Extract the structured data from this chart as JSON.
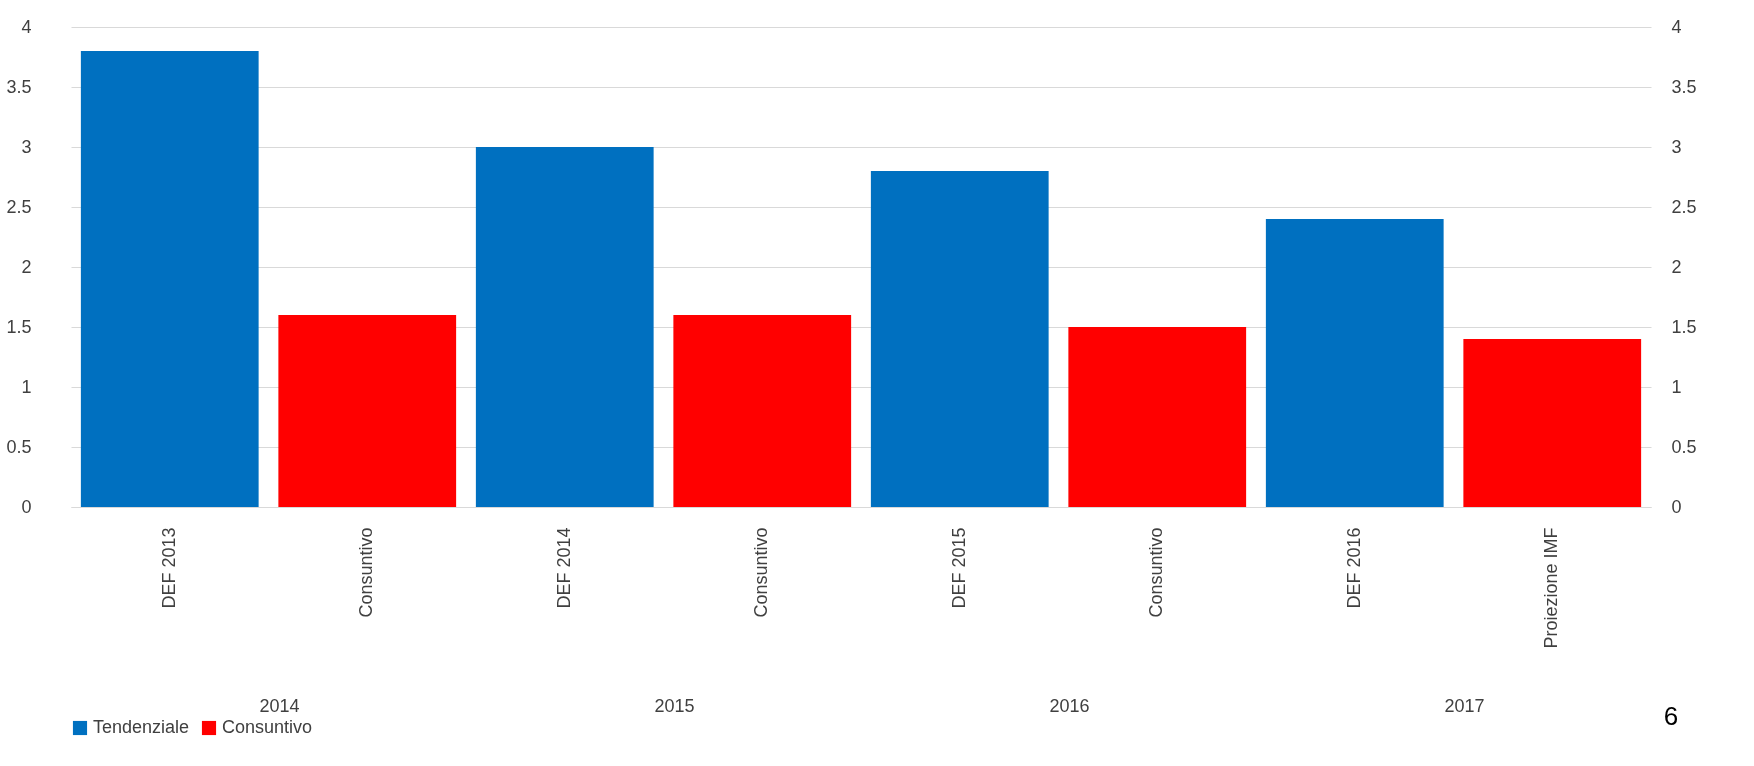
{
  "chart_data": {
    "type": "bar",
    "categories": [
      "DEF 2013",
      "Consuntivo",
      "DEF 2014",
      "Consuntivo",
      "DEF 2015",
      "Consuntivo",
      "DEF 2016",
      "Proiezione IMF"
    ],
    "series": [
      {
        "name": "Tendenziale",
        "color": "#0070c0",
        "values": [
          3.8,
          null,
          3.0,
          null,
          2.8,
          null,
          2.4,
          null
        ]
      },
      {
        "name": "Consuntivo",
        "color": "#ff0000",
        "values": [
          null,
          1.6,
          null,
          1.6,
          null,
          1.5,
          null,
          1.4
        ]
      }
    ],
    "ylim": [
      0,
      4
    ],
    "yticks": [
      0,
      0.5,
      1,
      1.5,
      2,
      2.5,
      3,
      3.5,
      4
    ],
    "y2lim": [
      0,
      4
    ],
    "y2ticks": [
      0,
      0.5,
      1,
      1.5,
      2,
      2.5,
      3,
      3.5,
      4
    ],
    "grid": "y",
    "legend": "bottom",
    "annotations": [
      "2014",
      "2015",
      "2016",
      "2017",
      "6"
    ]
  }
}
